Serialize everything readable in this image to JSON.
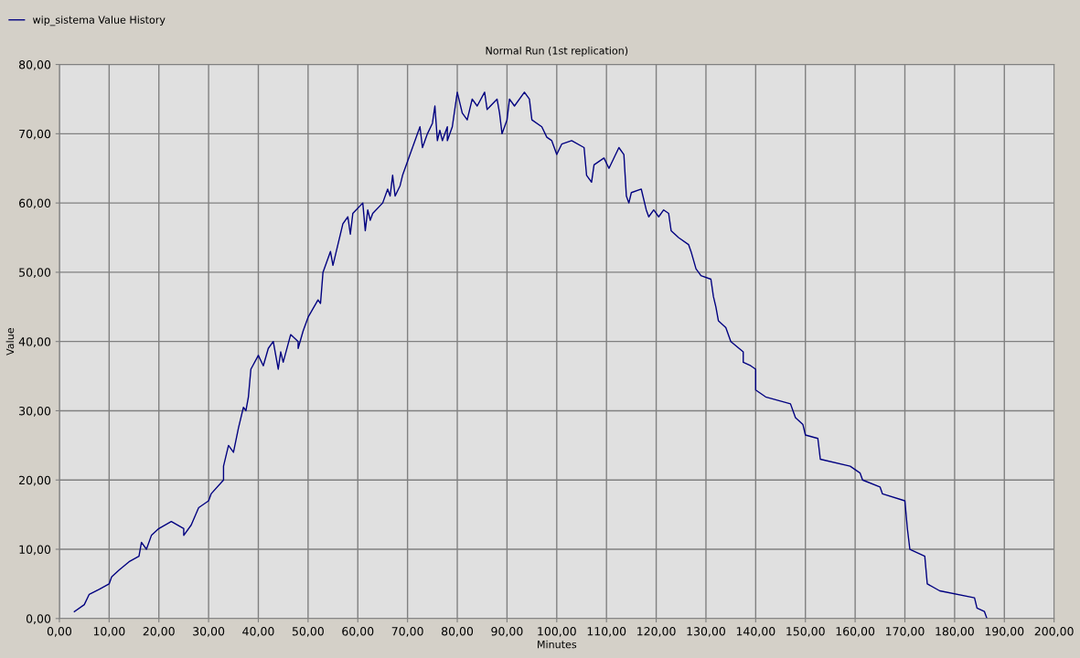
{
  "chart_data": {
    "type": "line",
    "title": "Normal Run (1st replication)",
    "xlabel": "Minutes",
    "ylabel": "Value",
    "legend": "top left",
    "grid": true,
    "marker": "none",
    "line_style": "solid",
    "xlim": [
      0,
      200
    ],
    "ylim": [
      0,
      80
    ],
    "xticks": [
      {
        "value": 0,
        "label": "0,00"
      },
      {
        "value": 10,
        "label": "10,00"
      },
      {
        "value": 20,
        "label": "20,00"
      },
      {
        "value": 30,
        "label": "30,00"
      },
      {
        "value": 40,
        "label": "40,00"
      },
      {
        "value": 50,
        "label": "50,00"
      },
      {
        "value": 60,
        "label": "60,00"
      },
      {
        "value": 70,
        "label": "70,00"
      },
      {
        "value": 80,
        "label": "80,00"
      },
      {
        "value": 90,
        "label": "90,00"
      },
      {
        "value": 100,
        "label": "100,00"
      },
      {
        "value": 110,
        "label": "110,00"
      },
      {
        "value": 120,
        "label": "120,00"
      },
      {
        "value": 130,
        "label": "130,00"
      },
      {
        "value": 140,
        "label": "140,00"
      },
      {
        "value": 150,
        "label": "150,00"
      },
      {
        "value": 160,
        "label": "160,00"
      },
      {
        "value": 170,
        "label": "170,00"
      },
      {
        "value": 180,
        "label": "180,00"
      },
      {
        "value": 190,
        "label": "190,00"
      },
      {
        "value": 200,
        "label": "200,00"
      }
    ],
    "yticks": [
      {
        "value": 0,
        "label": "0,00"
      },
      {
        "value": 10,
        "label": "10,00"
      },
      {
        "value": 20,
        "label": "20,00"
      },
      {
        "value": 30,
        "label": "30,00"
      },
      {
        "value": 40,
        "label": "40,00"
      },
      {
        "value": 50,
        "label": "50,00"
      },
      {
        "value": 60,
        "label": "60,00"
      },
      {
        "value": 70,
        "label": "70,00"
      },
      {
        "value": 80,
        "label": "80,00"
      }
    ],
    "series": [
      {
        "name": "wip_sistema Value History",
        "color": "#000080",
        "x": [
          3,
          5,
          6,
          8,
          10,
          10.5,
          12,
          14,
          16,
          16.5,
          17.5,
          18.5,
          20,
          22.5,
          25,
          25,
          26.5,
          28,
          30,
          30.5,
          33,
          33,
          34,
          35,
          36,
          37,
          37.5,
          38,
          38.5,
          40,
          41,
          42,
          43,
          44,
          44.5,
          45,
          46.5,
          48,
          48,
          49,
          50,
          52,
          52.5,
          53,
          54.5,
          55,
          56,
          57,
          58,
          58.5,
          59,
          61,
          61.5,
          62,
          62.5,
          63,
          65,
          66,
          66.5,
          67,
          67.5,
          68.5,
          69,
          70.5,
          72,
          72.5,
          73,
          74,
          75,
          75.5,
          76,
          76.5,
          77,
          78,
          78,
          79,
          80,
          81,
          82,
          83,
          84,
          85.5,
          86,
          88,
          88.5,
          89,
          90,
          90.5,
          91.5,
          93.5,
          94.5,
          95,
          97,
          98,
          99,
          100,
          101,
          103,
          105.5,
          106,
          107,
          107.5,
          109.5,
          110.5,
          112.5,
          113.5,
          114,
          114.5,
          115,
          117,
          118,
          118.5,
          119.5,
          120.5,
          121.5,
          122.5,
          123,
          124.5,
          126.5,
          127,
          128,
          129,
          131,
          131.5,
          132,
          132.5,
          134,
          135,
          137.5,
          137.5,
          139,
          140,
          140,
          142,
          147,
          148,
          149.5,
          150,
          152.5,
          153,
          159,
          161,
          161.5,
          165,
          165.5,
          170,
          170.5,
          171,
          174,
          174.5,
          177,
          184,
          184.5,
          186,
          186.5
        ],
        "values": [
          1,
          2,
          3.5,
          4.2,
          5,
          6,
          7,
          8.2,
          9,
          11,
          10,
          12,
          13,
          14,
          13,
          12,
          13.5,
          16,
          17,
          18,
          20,
          22,
          25,
          24,
          27.5,
          30.5,
          30,
          32,
          36,
          38,
          36.5,
          39,
          40,
          36,
          38.5,
          37,
          41,
          40,
          39,
          41.5,
          43.5,
          46,
          45.5,
          50,
          53,
          51,
          54,
          57,
          58,
          55.5,
          58.5,
          60,
          56,
          59,
          57.5,
          58.5,
          60,
          62,
          61,
          64,
          61,
          62.5,
          64,
          67,
          70,
          71,
          68,
          70,
          71.5,
          74,
          69,
          70.5,
          69,
          71,
          69,
          71,
          76,
          73,
          72,
          75,
          74,
          76,
          73.5,
          75,
          73,
          70,
          72,
          75,
          74,
          76,
          75,
          72,
          71,
          69.5,
          69,
          67,
          68.5,
          69,
          68,
          64,
          63,
          65.5,
          66.5,
          65,
          68,
          67,
          61,
          60,
          61.5,
          62,
          59,
          58,
          59,
          58,
          59,
          58.5,
          56,
          55,
          54,
          53,
          50.5,
          49.5,
          49,
          46.5,
          45,
          43,
          42,
          40,
          38.5,
          37,
          36.5,
          36,
          33,
          32,
          31,
          29,
          28,
          26.5,
          26,
          23,
          22,
          21,
          20,
          19,
          18,
          17,
          13,
          10,
          9,
          5,
          4,
          3,
          1.5,
          1,
          0
        ]
      }
    ]
  }
}
